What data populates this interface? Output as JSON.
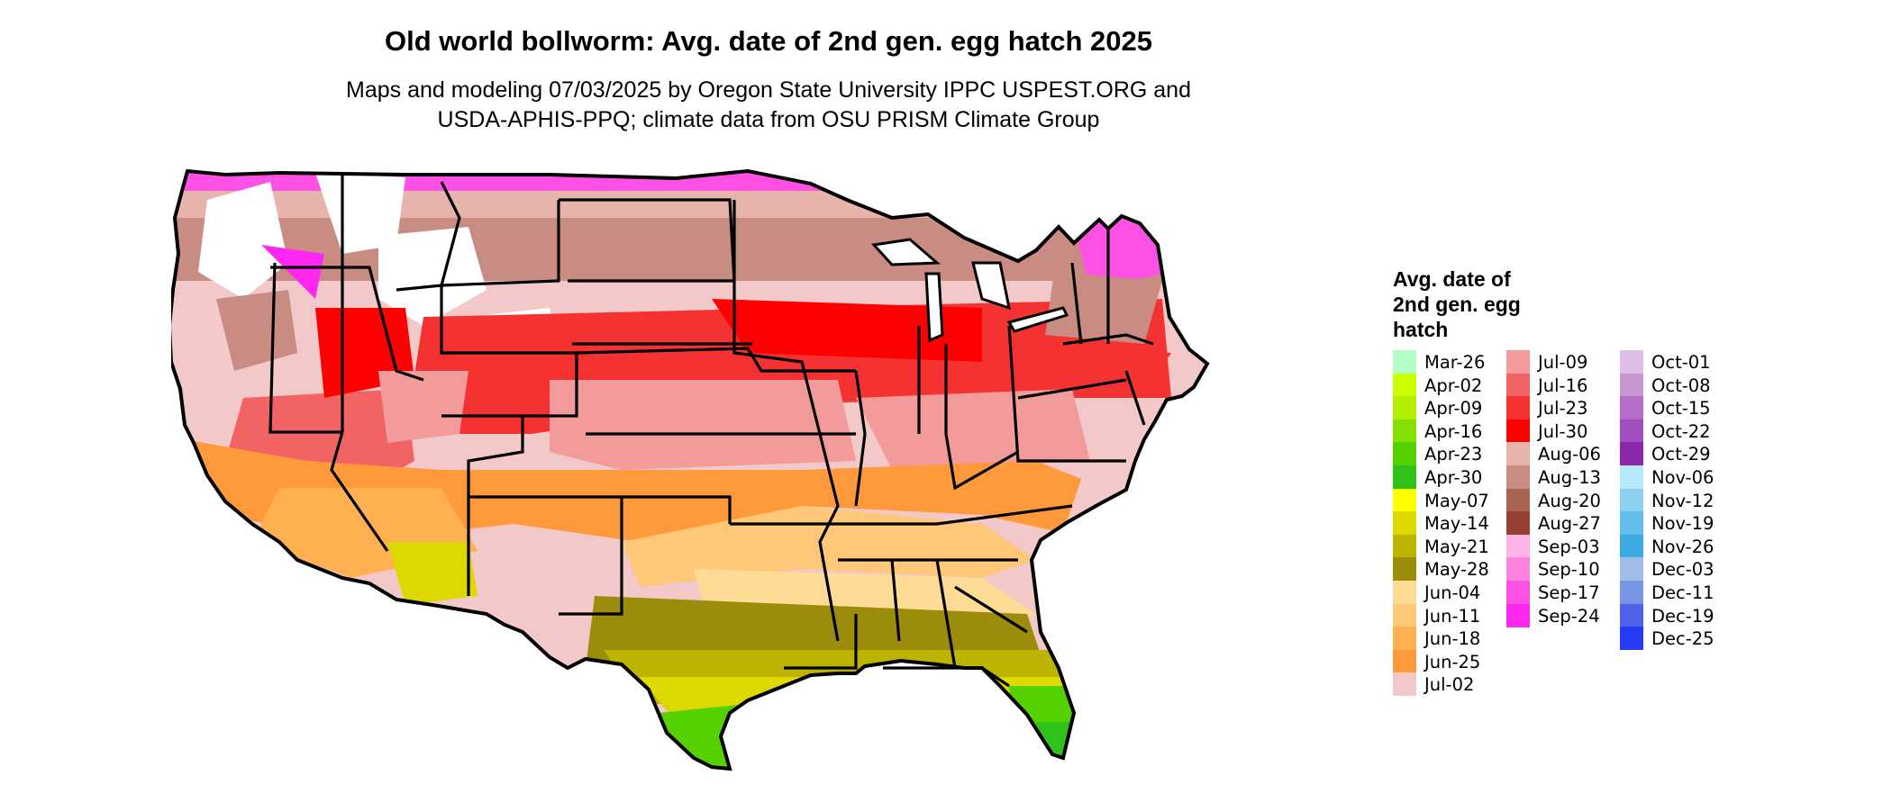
{
  "header": {
    "title": "Old world bollworm: Avg. date of 2nd gen. egg hatch 2025",
    "subtitle_line1": "Maps and modeling 07/03/2025 by Oregon State University IPPC USPEST.ORG and",
    "subtitle_line2": "USDA-APHIS-PPQ; climate data from OSU PRISM Climate Group"
  },
  "legend": {
    "title_line1": "Avg. date of",
    "title_line2": "2nd gen. egg",
    "title_line3": "hatch",
    "items": [
      {
        "label": "Mar-26",
        "color": "#b3ffc8"
      },
      {
        "label": "Apr-02",
        "color": "#ccff00"
      },
      {
        "label": "Apr-09",
        "color": "#b2ef00"
      },
      {
        "label": "Apr-16",
        "color": "#84e000"
      },
      {
        "label": "Apr-23",
        "color": "#55d100"
      },
      {
        "label": "Apr-30",
        "color": "#2ec21a"
      },
      {
        "label": "May-07",
        "color": "#ffff00"
      },
      {
        "label": "May-14",
        "color": "#dcd800"
      },
      {
        "label": "May-21",
        "color": "#bcb400"
      },
      {
        "label": "May-28",
        "color": "#9b8c0c"
      },
      {
        "label": "Jun-04",
        "color": "#ffdc96"
      },
      {
        "label": "Jun-11",
        "color": "#ffc878"
      },
      {
        "label": "Jun-18",
        "color": "#ffb050"
      },
      {
        "label": "Jun-25",
        "color": "#ff9a3c"
      },
      {
        "label": "Jul-02",
        "color": "#f2c8c8"
      },
      {
        "label": "Jul-09",
        "color": "#f39a9a"
      },
      {
        "label": "Jul-16",
        "color": "#f26464"
      },
      {
        "label": "Jul-23",
        "color": "#f53232"
      },
      {
        "label": "Jul-30",
        "color": "#ff0000"
      },
      {
        "label": "Aug-06",
        "color": "#e6b4aa"
      },
      {
        "label": "Aug-13",
        "color": "#c88c82"
      },
      {
        "label": "Aug-20",
        "color": "#aa6450"
      },
      {
        "label": "Aug-27",
        "color": "#964132"
      },
      {
        "label": "Sep-03",
        "color": "#ffb4e6"
      },
      {
        "label": "Sep-10",
        "color": "#ff82e1"
      },
      {
        "label": "Sep-17",
        "color": "#ff50e6"
      },
      {
        "label": "Sep-24",
        "color": "#ff28f0"
      },
      {
        "label": "Oct-01",
        "color": "#dcbee6"
      },
      {
        "label": "Oct-08",
        "color": "#c896d2"
      },
      {
        "label": "Oct-15",
        "color": "#b46ec8"
      },
      {
        "label": "Oct-22",
        "color": "#a050be"
      },
      {
        "label": "Oct-29",
        "color": "#8c28aa"
      },
      {
        "label": "Nov-06",
        "color": "#b4eafa"
      },
      {
        "label": "Nov-12",
        "color": "#8cd2f0"
      },
      {
        "label": "Nov-19",
        "color": "#64beeb"
      },
      {
        "label": "Nov-26",
        "color": "#3caae1"
      },
      {
        "label": "Dec-03",
        "color": "#a0bee6"
      },
      {
        "label": "Dec-11",
        "color": "#7896e6"
      },
      {
        "label": "Dec-19",
        "color": "#5064eb"
      },
      {
        "label": "Dec-25",
        "color": "#283cf5"
      }
    ]
  }
}
